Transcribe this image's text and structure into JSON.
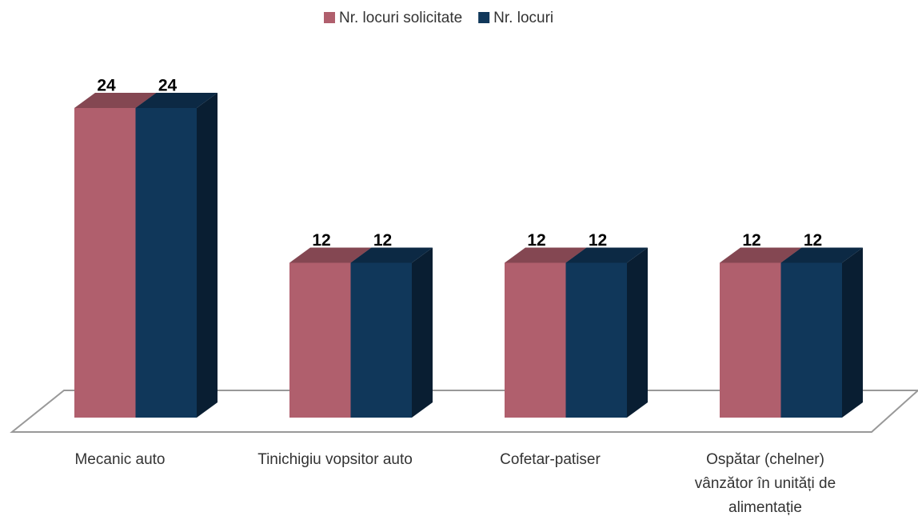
{
  "chart_data": {
    "type": "bar3d",
    "categories": [
      "Mecanic auto",
      "Tinichigiu vopsitor auto",
      "Cofetar-patiser",
      "Ospătar (chelner) vânzător în unități de alimentație"
    ],
    "series": [
      {
        "name": "Nr. locuri solicitate",
        "color": "#b05f6d",
        "values": [
          24,
          12,
          12,
          12
        ]
      },
      {
        "name": "Nr. locuri",
        "color": "#10375a",
        "values": [
          24,
          12,
          12,
          12
        ]
      }
    ],
    "legend": "top"
  }
}
